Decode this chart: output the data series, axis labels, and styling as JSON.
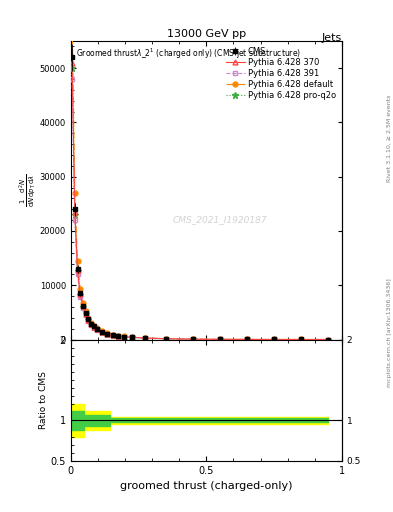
{
  "title_top": "13000 GeV pp",
  "title_right": "Jets",
  "xlabel": "groomed thrust (charged-only)",
  "ylabel_ratio": "Ratio to CMS",
  "watermark": "CMS_2021_I1920187",
  "x_data": [
    0.005,
    0.015,
    0.025,
    0.035,
    0.045,
    0.055,
    0.065,
    0.075,
    0.085,
    0.095,
    0.115,
    0.135,
    0.155,
    0.175,
    0.195,
    0.225,
    0.275,
    0.35,
    0.45,
    0.55,
    0.65,
    0.75,
    0.85,
    0.95
  ],
  "cms_y": [
    52000,
    24000,
    13000,
    8500,
    6200,
    4800,
    3700,
    2900,
    2400,
    1950,
    1450,
    1060,
    820,
    650,
    540,
    410,
    265,
    150,
    68,
    30,
    12,
    6,
    2.5,
    1.0
  ],
  "cms_yerr": [
    2500,
    1200,
    800,
    500,
    350,
    260,
    200,
    160,
    140,
    110,
    80,
    60,
    50,
    40,
    34,
    26,
    18,
    10,
    5,
    2.5,
    1.5,
    0.8,
    0.4,
    0.2
  ],
  "p370_y": [
    51000,
    23500,
    12800,
    8300,
    6100,
    4700,
    3600,
    2850,
    2350,
    1900,
    1420,
    1040,
    810,
    640,
    530,
    405,
    260,
    148,
    67,
    30,
    12,
    5.8,
    2.4,
    1.0
  ],
  "p391_y": [
    48000,
    22000,
    12000,
    7900,
    5800,
    4500,
    3450,
    2730,
    2260,
    1830,
    1370,
    1000,
    780,
    620,
    510,
    390,
    252,
    144,
    65,
    29,
    11.5,
    5.5,
    2.3,
    0.95
  ],
  "pdef_y": [
    60000,
    27000,
    14500,
    9300,
    6800,
    5200,
    3950,
    3100,
    2560,
    2070,
    1540,
    1130,
    870,
    690,
    570,
    435,
    278,
    158,
    72,
    32,
    13,
    6.2,
    2.6,
    1.05
  ],
  "pq2o_y": [
    50000,
    23000,
    12600,
    8200,
    6000,
    4650,
    3560,
    2820,
    2330,
    1890,
    1410,
    1030,
    800,
    635,
    525,
    400,
    258,
    147,
    66,
    29.5,
    12,
    5.7,
    2.35,
    0.98
  ],
  "cms_color": "#000000",
  "p370_color": "#ff4444",
  "p391_color": "#cc88cc",
  "pdef_color": "#ff8800",
  "pq2o_color": "#44aa44",
  "ratio_band_yellow": "#ffff00",
  "ratio_band_green": "#44cc44",
  "ylim_main": [
    0,
    55000
  ],
  "ylim_ratio": [
    0.5,
    2.0
  ],
  "xlim": [
    0,
    1.0
  ],
  "yticks_main": [
    0,
    10000,
    20000,
    30000,
    40000,
    50000
  ],
  "ytick_labels_main": [
    "0",
    "10000",
    "20000",
    "30000",
    "40000",
    "50000"
  ]
}
